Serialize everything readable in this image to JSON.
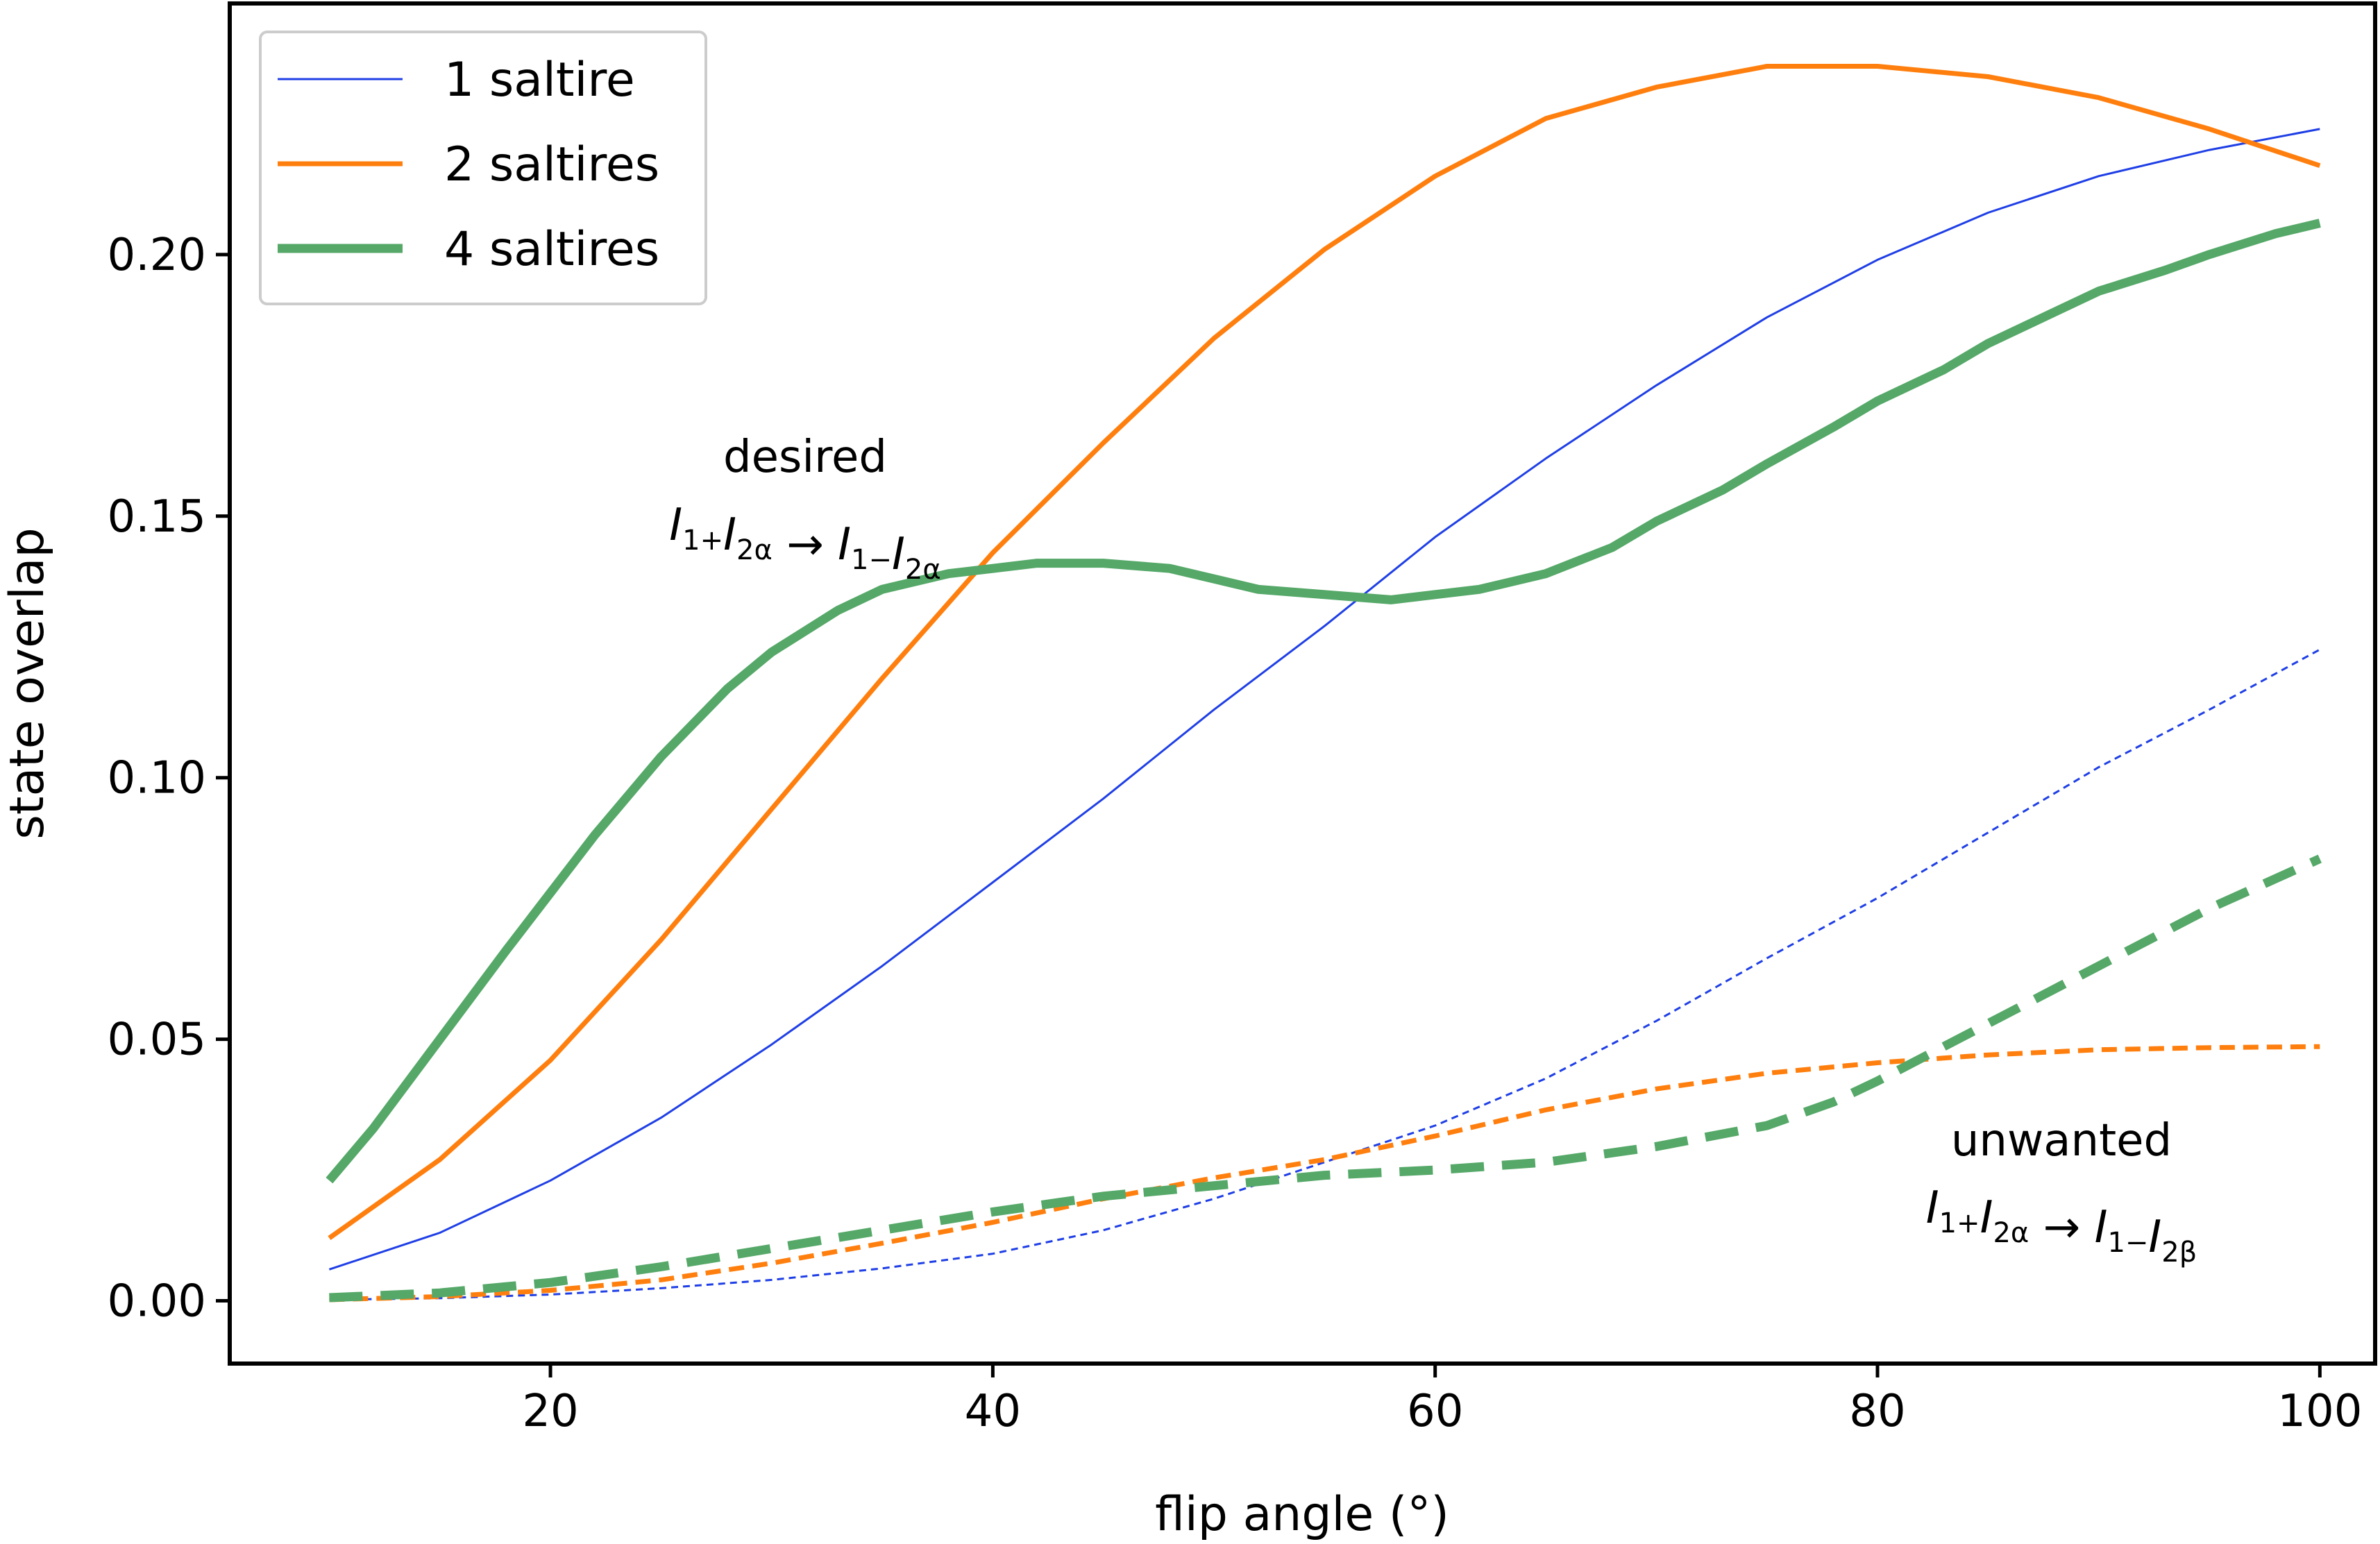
{
  "chart_data": {
    "type": "line",
    "xlabel": "flip angle (°)",
    "ylabel": "state overlap",
    "xlim": [
      5.5,
      102.5
    ],
    "ylim": [
      -0.012,
      0.248
    ],
    "xticks": [
      20,
      40,
      60,
      80,
      100
    ],
    "yticks": [
      0.0,
      0.05,
      0.1,
      0.15,
      0.2
    ],
    "xtick_labels": [
      "20",
      "40",
      "60",
      "80",
      "100"
    ],
    "ytick_labels": [
      "0.00",
      "0.05",
      "0.10",
      "0.15",
      "0.20"
    ],
    "grid": false,
    "legend_position": "top-left",
    "legend": [
      {
        "label": "1 saltire",
        "color": "#1f3fe6",
        "style": "thin"
      },
      {
        "label": "2 saltires",
        "color": "#ff7f0e",
        "style": "medium"
      },
      {
        "label": "4 saltires",
        "color": "#55a868",
        "style": "thick"
      }
    ],
    "annotations": {
      "desired": {
        "title": "desired",
        "formula": [
          {
            "t": "I",
            "i": true
          },
          {
            "t": "1+",
            "sub": true
          },
          {
            "t": "I",
            "i": true
          },
          {
            "t": "2α",
            "sub": true
          },
          {
            "t": " → "
          },
          {
            "t": "I",
            "i": true
          },
          {
            "t": "1−",
            "sub": true
          },
          {
            "t": "I",
            "i": true
          },
          {
            "t": "2α",
            "sub": true
          }
        ]
      },
      "unwanted": {
        "title": "unwanted",
        "formula": [
          {
            "t": "I",
            "i": true
          },
          {
            "t": "1+",
            "sub": true
          },
          {
            "t": "I",
            "i": true
          },
          {
            "t": "2α",
            "sub": true
          },
          {
            "t": " → "
          },
          {
            "t": "I",
            "i": true
          },
          {
            "t": "1−",
            "sub": true
          },
          {
            "t": "I",
            "i": true
          },
          {
            "t": "2β",
            "sub": true
          }
        ]
      }
    },
    "series": [
      {
        "name": "1 saltire",
        "kind": "desired",
        "color": "#1f3fe6",
        "width": 3,
        "dash": "solid",
        "x": [
          10,
          15,
          20,
          25,
          30,
          35,
          40,
          45,
          50,
          55,
          60,
          65,
          70,
          75,
          80,
          85,
          90,
          95,
          100
        ],
        "y": [
          0.006,
          0.013,
          0.023,
          0.035,
          0.049,
          0.064,
          0.08,
          0.096,
          0.113,
          0.129,
          0.146,
          0.161,
          0.175,
          0.188,
          0.199,
          0.208,
          0.215,
          0.22,
          0.224
        ]
      },
      {
        "name": "2 saltires",
        "kind": "desired",
        "color": "#ff7f0e",
        "width": 7,
        "dash": "solid",
        "x": [
          10,
          15,
          20,
          25,
          30,
          35,
          40,
          45,
          50,
          55,
          60,
          65,
          70,
          75,
          80,
          85,
          90,
          95,
          100
        ],
        "y": [
          0.012,
          0.027,
          0.046,
          0.069,
          0.094,
          0.119,
          0.143,
          0.164,
          0.184,
          0.201,
          0.215,
          0.226,
          0.232,
          0.236,
          0.236,
          0.234,
          0.23,
          0.224,
          0.217
        ]
      },
      {
        "name": "4 saltires",
        "kind": "desired",
        "color": "#55a868",
        "width": 13,
        "dash": "solid",
        "x": [
          10,
          12,
          15,
          18,
          20,
          22,
          25,
          28,
          30,
          33,
          35,
          38,
          40,
          42,
          45,
          48,
          50,
          52,
          55,
          58,
          60,
          62,
          65,
          68,
          70,
          73,
          75,
          78,
          80,
          83,
          85,
          88,
          90,
          93,
          95,
          98,
          100
        ],
        "y": [
          0.023,
          0.033,
          0.05,
          0.067,
          0.078,
          0.089,
          0.104,
          0.117,
          0.124,
          0.132,
          0.136,
          0.139,
          0.14,
          0.141,
          0.141,
          0.14,
          0.138,
          0.136,
          0.135,
          0.134,
          0.135,
          0.136,
          0.139,
          0.144,
          0.149,
          0.155,
          0.16,
          0.167,
          0.172,
          0.178,
          0.183,
          0.189,
          0.193,
          0.197,
          0.2,
          0.204,
          0.206
        ]
      },
      {
        "name": "1 saltire",
        "kind": "unwanted",
        "color": "#1f3fe6",
        "width": 3,
        "dash": "10 7",
        "x": [
          10,
          15,
          20,
          25,
          30,
          35,
          40,
          45,
          50,
          55,
          60,
          65,
          70,
          75,
          80,
          85,
          90,
          95,
          100
        ],
        "y": [
          0.0002,
          0.0005,
          0.0012,
          0.0024,
          0.004,
          0.0062,
          0.009,
          0.0135,
          0.0195,
          0.0265,
          0.0335,
          0.0425,
          0.0535,
          0.0655,
          0.077,
          0.0895,
          0.102,
          0.113,
          0.1245
        ]
      },
      {
        "name": "2 saltires",
        "kind": "unwanted",
        "color": "#ff7f0e",
        "width": 7,
        "dash": "22 12",
        "x": [
          10,
          15,
          20,
          25,
          30,
          35,
          40,
          45,
          50,
          55,
          60,
          65,
          70,
          75,
          80,
          85,
          90,
          95,
          100
        ],
        "y": [
          0.0002,
          0.0008,
          0.002,
          0.004,
          0.0072,
          0.011,
          0.015,
          0.0195,
          0.0235,
          0.027,
          0.0315,
          0.0365,
          0.0405,
          0.0435,
          0.0455,
          0.047,
          0.048,
          0.0484,
          0.0486
        ]
      },
      {
        "name": "4 saltires",
        "kind": "unwanted",
        "color": "#55a868",
        "width": 13,
        "dash": "48 26",
        "x": [
          10,
          15,
          20,
          25,
          30,
          35,
          40,
          45,
          50,
          55,
          60,
          65,
          70,
          75,
          78,
          80,
          85,
          90,
          95,
          100
        ],
        "y": [
          0.0006,
          0.0015,
          0.0035,
          0.0065,
          0.01,
          0.0135,
          0.017,
          0.02,
          0.022,
          0.024,
          0.025,
          0.0265,
          0.0295,
          0.0335,
          0.038,
          0.042,
          0.053,
          0.064,
          0.075,
          0.0845
        ]
      }
    ]
  }
}
